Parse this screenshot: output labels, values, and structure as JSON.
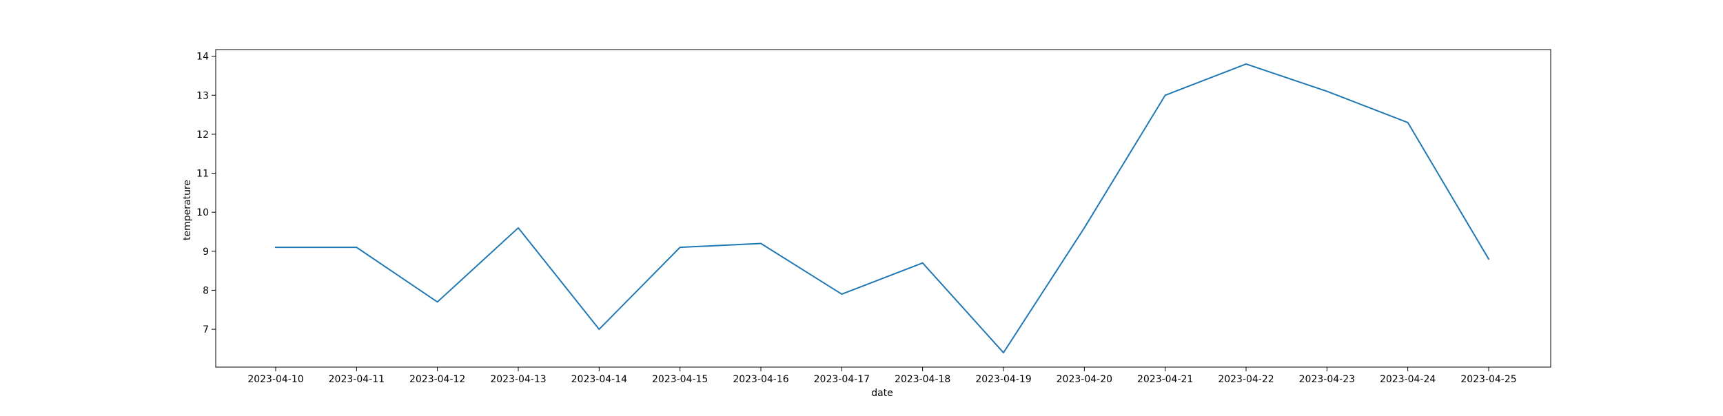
{
  "chart_data": {
    "type": "line",
    "title": "",
    "xlabel": "date",
    "ylabel": "temperature",
    "x": [
      "2023-04-10",
      "2023-04-11",
      "2023-04-12",
      "2023-04-13",
      "2023-04-14",
      "2023-04-15",
      "2023-04-16",
      "2023-04-17",
      "2023-04-18",
      "2023-04-19",
      "2023-04-20",
      "2023-04-21",
      "2023-04-22",
      "2023-04-23",
      "2023-04-24",
      "2023-04-25"
    ],
    "series": [
      {
        "values": [
          9.1,
          9.1,
          7.7,
          9.6,
          7.0,
          9.1,
          9.2,
          7.9,
          8.7,
          6.4,
          9.6,
          13.0,
          13.8,
          13.1,
          12.3,
          8.8
        ],
        "color": "#1f77b4"
      }
    ],
    "yticks": [
      7,
      8,
      9,
      10,
      11,
      12,
      13,
      14
    ],
    "ylim": [
      6.03,
      14.17
    ],
    "grid": false,
    "legend": "none"
  }
}
